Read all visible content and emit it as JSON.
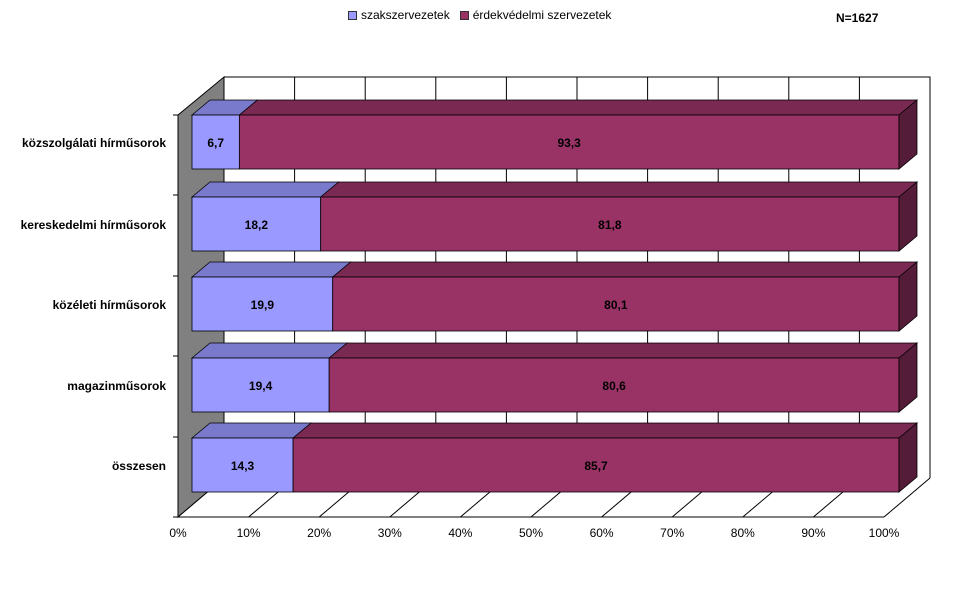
{
  "chart_data": {
    "type": "bar",
    "orientation": "horizontal",
    "stacked": "percent",
    "three_d": true,
    "note": "N=1627",
    "categories": [
      "közszolgálati hírműsorok",
      "kereskedelmi hírműsorok",
      "közéleti hírműsorok",
      "magazinműsorok",
      "összesen"
    ],
    "series": [
      {
        "name": "szakszervezetek",
        "values": [
          6.7,
          18.2,
          19.9,
          19.4,
          14.3
        ],
        "labels": [
          "6,7",
          "18,2",
          "19,9",
          "19,4",
          "14,3"
        ],
        "color": "#9999ff"
      },
      {
        "name": "érdekvédelmi szervezetek",
        "values": [
          93.3,
          81.8,
          80.1,
          80.6,
          85.7
        ],
        "labels": [
          "93,3",
          "81,8",
          "80,1",
          "80,6",
          "85,7"
        ],
        "color": "#993366"
      }
    ],
    "xticks": [
      "0%",
      "10%",
      "20%",
      "30%",
      "40%",
      "50%",
      "60%",
      "70%",
      "80%",
      "90%",
      "100%"
    ],
    "xlim": [
      0,
      100
    ],
    "grid": true,
    "legend_position": "top"
  }
}
